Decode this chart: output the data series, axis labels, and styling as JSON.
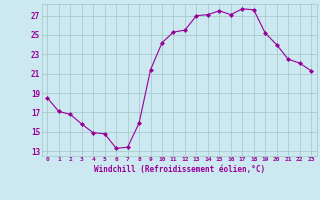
{
  "x": [
    0,
    1,
    2,
    3,
    4,
    5,
    6,
    7,
    8,
    9,
    10,
    11,
    12,
    13,
    14,
    15,
    16,
    17,
    18,
    19,
    20,
    21,
    22,
    23
  ],
  "y": [
    18.5,
    17.1,
    16.8,
    15.8,
    14.9,
    14.8,
    13.3,
    13.4,
    15.9,
    21.4,
    24.2,
    25.3,
    25.5,
    27.0,
    27.1,
    27.5,
    27.1,
    27.7,
    27.6,
    25.2,
    24.0,
    22.5,
    22.1,
    21.3
  ],
  "line_color": "#990099",
  "marker": "D",
  "marker_size": 2,
  "bg_color": "#cce8f0",
  "grid_color": "#aacccc",
  "xlabel": "Windchill (Refroidissement éolien,°C)",
  "yticks": [
    13,
    15,
    17,
    19,
    21,
    23,
    25,
    27
  ],
  "xticks": [
    0,
    1,
    2,
    3,
    4,
    5,
    6,
    7,
    8,
    9,
    10,
    11,
    12,
    13,
    14,
    15,
    16,
    17,
    18,
    19,
    20,
    21,
    22,
    23
  ],
  "ylim": [
    12.5,
    28.2
  ],
  "xlim": [
    -0.5,
    23.5
  ],
  "font_color": "#990099"
}
